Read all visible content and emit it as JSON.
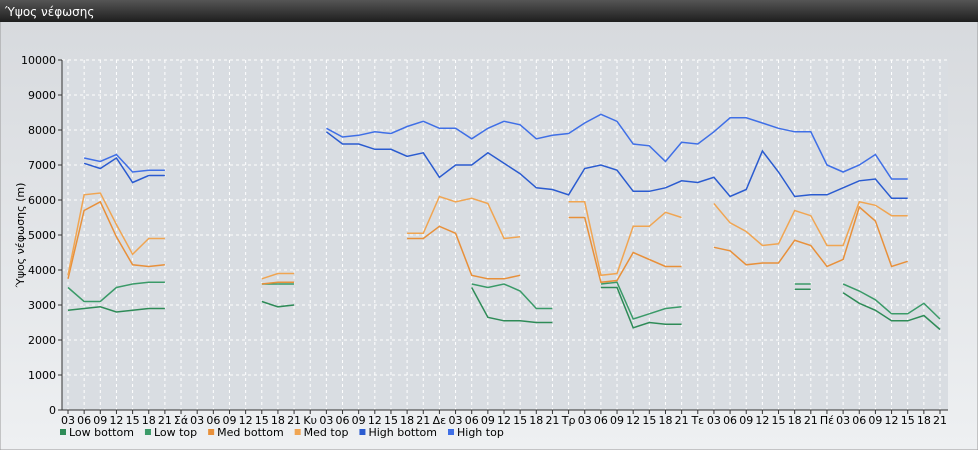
{
  "chart_data": {
    "type": "line",
    "title": "Ύψος νέφωσης",
    "y_label": "Ύψος νέφωσης (m)",
    "categories": [
      "03",
      "06",
      "09",
      "12",
      "15",
      "18",
      "21",
      "Σά",
      "03",
      "06",
      "09",
      "12",
      "15",
      "18",
      "21",
      "Κυ",
      "03",
      "06",
      "09",
      "12",
      "15",
      "18",
      "21",
      "Δε",
      "03",
      "06",
      "09",
      "12",
      "15",
      "18",
      "21",
      "Τρ",
      "03",
      "06",
      "09",
      "12",
      "15",
      "18",
      "21",
      "Τε",
      "03",
      "06",
      "09",
      "12",
      "15",
      "18",
      "21",
      "Πέ",
      "03",
      "06",
      "09",
      "12",
      "15",
      "18",
      "21"
    ],
    "ylim": [
      0,
      10000
    ],
    "yticks": [
      0,
      1000,
      2000,
      3000,
      4000,
      5000,
      6000,
      7000,
      8000,
      9000,
      10000
    ],
    "grid": true,
    "series": [
      {
        "name": "Low bottom",
        "color": "#2e8b57",
        "values": [
          2850,
          2900,
          2950,
          2800,
          2850,
          2900,
          2900,
          null,
          null,
          null,
          null,
          null,
          3100,
          2950,
          3000,
          null,
          null,
          null,
          null,
          null,
          null,
          null,
          null,
          null,
          null,
          3500,
          2650,
          2550,
          2550,
          2500,
          2500,
          null,
          null,
          3500,
          3500,
          2350,
          2500,
          2450,
          2450,
          null,
          null,
          null,
          null,
          null,
          null,
          3450,
          3450,
          null,
          3350,
          3050,
          2850,
          2550,
          2550,
          2700,
          2300
        ]
      },
      {
        "name": "Low top",
        "color": "#3a9a68",
        "values": [
          3500,
          3100,
          3100,
          3500,
          3600,
          3650,
          3650,
          null,
          null,
          null,
          null,
          null,
          3600,
          3600,
          3600,
          null,
          null,
          null,
          null,
          null,
          null,
          null,
          null,
          null,
          null,
          3600,
          3500,
          3600,
          3400,
          2900,
          2900,
          null,
          null,
          3600,
          3650,
          2600,
          2750,
          2900,
          2950,
          null,
          null,
          null,
          null,
          null,
          null,
          3600,
          3600,
          null,
          3600,
          3400,
          3150,
          2750,
          2750,
          3050,
          2600
        ]
      },
      {
        "name": "Med bottom",
        "color": "#e8903a",
        "values": [
          3750,
          5700,
          5950,
          4950,
          4150,
          4100,
          4150,
          null,
          null,
          null,
          null,
          null,
          3600,
          3650,
          3650,
          null,
          null,
          null,
          null,
          null,
          null,
          4900,
          4900,
          5250,
          5050,
          3850,
          3750,
          3750,
          3850,
          null,
          null,
          5500,
          5500,
          3650,
          3700,
          4500,
          4300,
          4100,
          4100,
          null,
          4650,
          4550,
          4150,
          4200,
          4200,
          4850,
          4700,
          4100,
          4300,
          5800,
          5400,
          4100,
          4250,
          null,
          null
        ]
      },
      {
        "name": "Med top",
        "color": "#f0a552",
        "values": [
          3850,
          6150,
          6200,
          5300,
          4450,
          4900,
          4900,
          null,
          null,
          null,
          null,
          null,
          3750,
          3900,
          3900,
          null,
          null,
          null,
          null,
          null,
          null,
          5050,
          5050,
          6100,
          5950,
          6050,
          5900,
          4900,
          4950,
          null,
          null,
          5950,
          5950,
          3850,
          3900,
          5250,
          5250,
          5650,
          5500,
          null,
          5900,
          5350,
          5100,
          4700,
          4750,
          5700,
          5550,
          4700,
          4700,
          5950,
          5850,
          5550,
          5550,
          null,
          null
        ]
      },
      {
        "name": "High bottom",
        "color": "#2a5bd0",
        "values": [
          null,
          7050,
          6900,
          7200,
          6500,
          6700,
          6700,
          null,
          null,
          null,
          null,
          null,
          null,
          null,
          null,
          null,
          7950,
          7600,
          7600,
          7450,
          7450,
          7250,
          7350,
          6650,
          7000,
          7000,
          7350,
          7050,
          6750,
          6350,
          6300,
          6150,
          6900,
          7000,
          6850,
          6250,
          6250,
          6350,
          6550,
          6500,
          6650,
          6100,
          6300,
          7400,
          6800,
          6100,
          6150,
          6150,
          6350,
          6550,
          6600,
          6050,
          6050,
          null,
          null
        ]
      },
      {
        "name": "High top",
        "color": "#3f6fe6",
        "values": [
          null,
          7200,
          7100,
          7300,
          6800,
          6850,
          6850,
          null,
          null,
          null,
          null,
          null,
          null,
          null,
          null,
          null,
          8050,
          7800,
          7850,
          7950,
          7900,
          8100,
          8250,
          8050,
          8050,
          7750,
          8050,
          8250,
          8150,
          7750,
          7850,
          7900,
          8200,
          8450,
          8250,
          7600,
          7550,
          7100,
          7650,
          7600,
          7950,
          8350,
          8350,
          8200,
          8050,
          7950,
          7950,
          7000,
          6800,
          7000,
          7300,
          6600,
          6600,
          null,
          null
        ]
      }
    ]
  }
}
